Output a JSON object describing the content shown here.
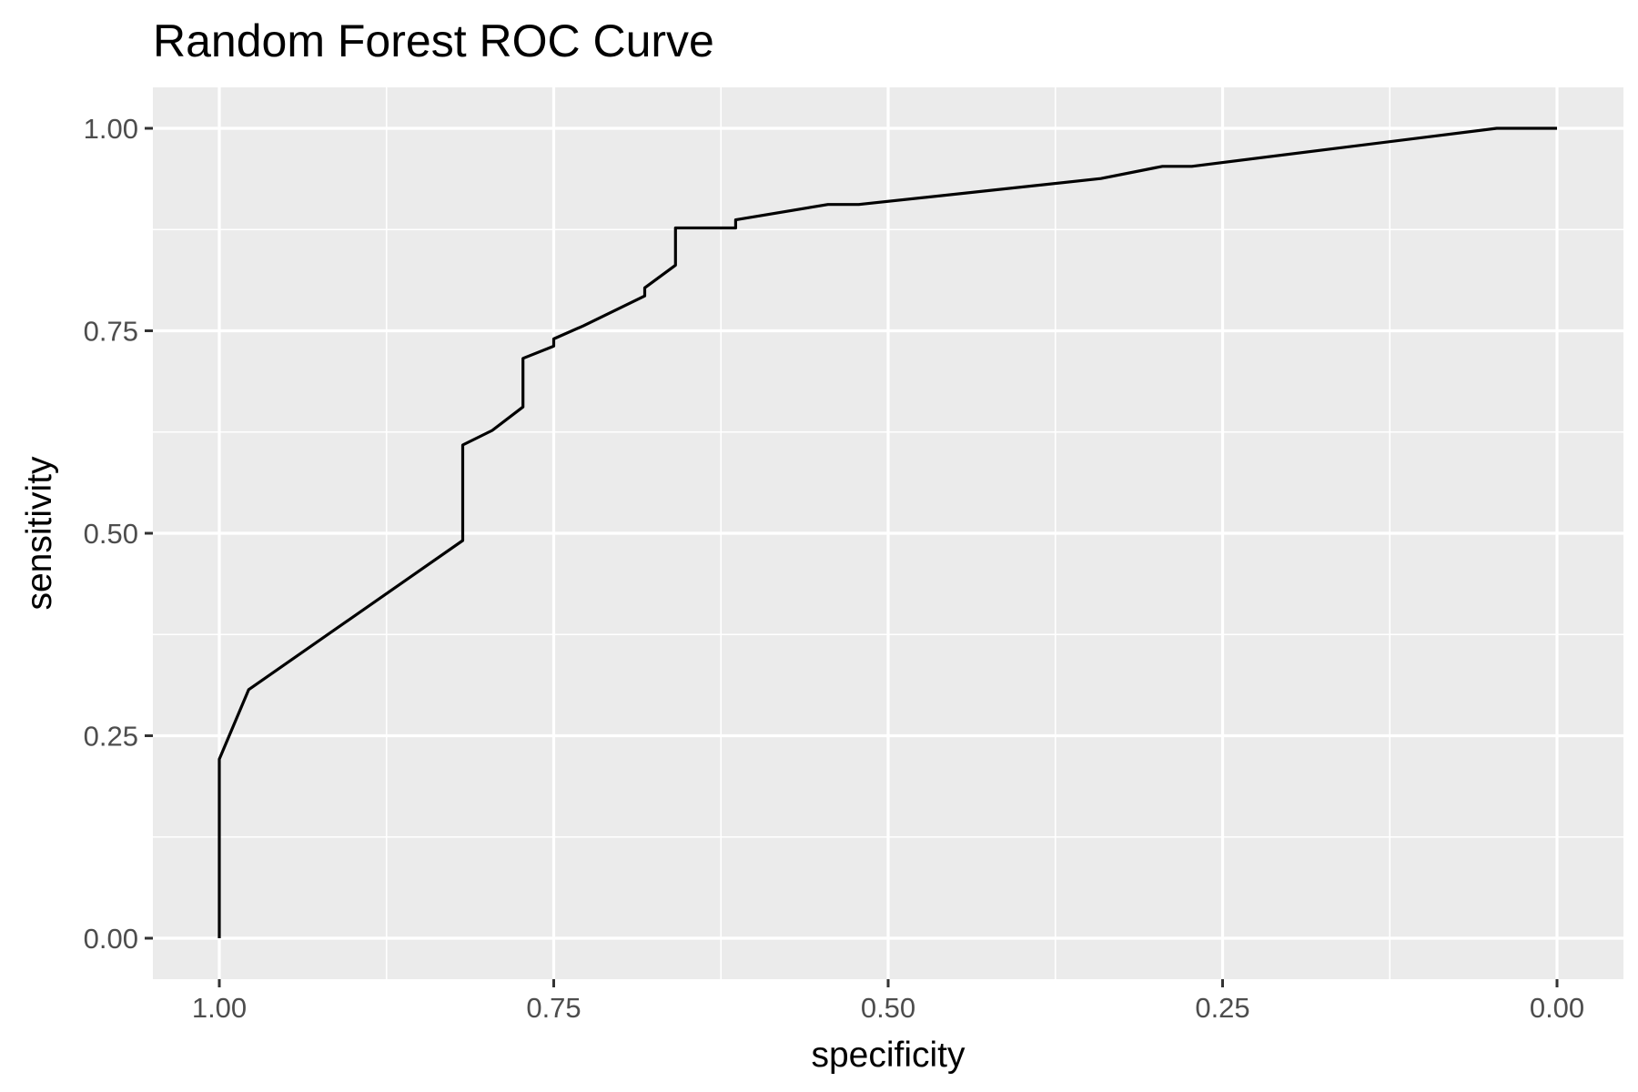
{
  "chart_data": {
    "type": "line",
    "title": "Random Forest ROC Curve",
    "xlabel": "specificity",
    "ylabel": "sensitivity",
    "x_reversed": true,
    "xlim": [
      1.0,
      0.0
    ],
    "ylim": [
      0.0,
      1.0
    ],
    "x_ticks": [
      "1.00",
      "0.75",
      "0.50",
      "0.25",
      "0.00"
    ],
    "y_ticks": [
      "0.00",
      "0.25",
      "0.50",
      "0.75",
      "1.00"
    ],
    "grid": true,
    "legend": "none",
    "background_color": "#ebebeb",
    "line_color": "#000000",
    "series": [
      {
        "specificity": [
          1.0,
          1.0,
          0.978,
          0.818,
          0.818,
          0.796,
          0.773,
          0.773,
          0.75,
          0.75,
          0.728,
          0.682,
          0.682,
          0.659,
          0.659,
          0.614,
          0.614,
          0.545,
          0.522,
          0.341,
          0.295,
          0.273,
          0.045,
          0.0
        ],
        "sensitivity": [
          0.0,
          0.221,
          0.307,
          0.491,
          0.609,
          0.627,
          0.656,
          0.716,
          0.731,
          0.74,
          0.756,
          0.793,
          0.803,
          0.831,
          0.877,
          0.877,
          0.887,
          0.906,
          0.906,
          0.938,
          0.953,
          0.953,
          1.0,
          1.0
        ]
      }
    ]
  }
}
